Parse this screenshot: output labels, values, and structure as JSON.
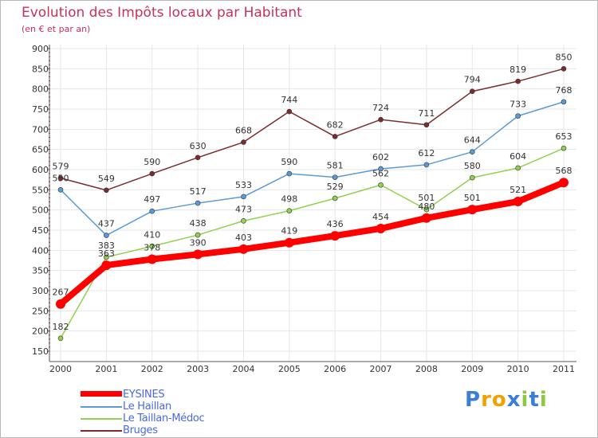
{
  "chart_data": {
    "type": "line",
    "title": "Evolution des Impôts locaux par Habitant",
    "subtitle": "(en € et par an)",
    "xlabel": "",
    "ylabel": "",
    "categories": [
      "2000",
      "2001",
      "2002",
      "2003",
      "2004",
      "2005",
      "2006",
      "2007",
      "2008",
      "2009",
      "2010",
      "2011"
    ],
    "ylim": [
      150,
      900
    ],
    "yticks": [
      150,
      200,
      250,
      300,
      350,
      400,
      450,
      500,
      550,
      600,
      650,
      700,
      750,
      800,
      850,
      900
    ],
    "grid": true,
    "legend_position": "bottom-left",
    "series": [
      {
        "name": "EYSINES",
        "color": "#ff0000",
        "values": [
          267,
          363,
          378,
          390,
          403,
          419,
          436,
          454,
          480,
          501,
          521,
          568
        ]
      },
      {
        "name": "Le Haillan",
        "color": "#5b9bd5",
        "values": [
          550,
          437,
          497,
          517,
          533,
          590,
          581,
          602,
          612,
          644,
          733,
          768
        ]
      },
      {
        "name": "Le Taillan-Médoc",
        "color": "#92d050",
        "values": [
          182,
          383,
          410,
          438,
          473,
          498,
          529,
          562,
          501,
          580,
          604,
          653
        ]
      },
      {
        "name": "Bruges",
        "color": "#7b2d2d",
        "values": [
          579,
          549,
          590,
          630,
          668,
          744,
          682,
          724,
          711,
          794,
          819,
          850
        ]
      }
    ]
  },
  "logo": {
    "text": "Proxiti",
    "letters": [
      "P",
      "r",
      "o",
      "x",
      "i",
      "t",
      "i"
    ],
    "colors": [
      "#3a7fd5",
      "#f2a100",
      "#f2a100",
      "#3a7fd5",
      "#8dc63f",
      "#3a7fd5",
      "#8dc63f"
    ]
  }
}
